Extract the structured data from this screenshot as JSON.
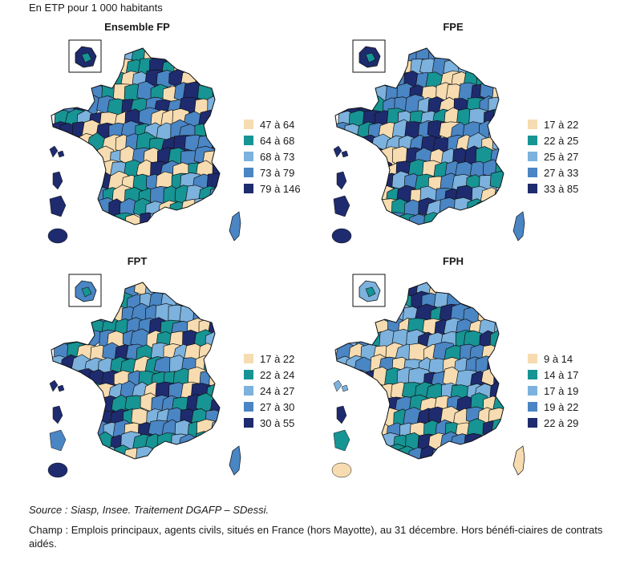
{
  "unit_note": "En ETP pour 1 000 habitants",
  "colors": {
    "c1": "#f6dcb0",
    "c2": "#179494",
    "c3": "#7cb2dd",
    "c4": "#4a85c4",
    "c5": "#1e2b6e"
  },
  "panels": [
    {
      "title": "Ensemble FP",
      "legend": [
        "47 à 64",
        "64 à 68",
        "68 à 73",
        "73 à 79",
        "79 à 146"
      ],
      "overseas": [
        "c5",
        "c5",
        "c5",
        "c5"
      ],
      "inset": "c5"
    },
    {
      "title": "FPE",
      "legend": [
        "17 à 22",
        "22 à 25",
        "25 à 27",
        "27 à 33",
        "33 à 85"
      ],
      "overseas": [
        "c5",
        "c5",
        "c5",
        "c5"
      ],
      "inset": "c5"
    },
    {
      "title": "FPT",
      "legend": [
        "17 à 22",
        "22 à 24",
        "24 à 27",
        "27 à 30",
        "30 à 55"
      ],
      "overseas": [
        "c5",
        "c5",
        "c4",
        "c5"
      ],
      "inset": "c4"
    },
    {
      "title": "FPH",
      "legend": [
        "9 à 14",
        "14 à 17",
        "17 à 19",
        "19 à 22",
        "22 à 29"
      ],
      "overseas": [
        "c3",
        "c5",
        "c2",
        "c1"
      ],
      "inset": "c3"
    }
  ],
  "source": "Source : Siasp, Insee. Traitement DGAFP – SDessi.",
  "champ": "Champ : Emplois principaux, agents civils, situés en France (hors Mayotte), au 31 décembre. Hors bénéfi-ciaires de contrats aidés."
}
